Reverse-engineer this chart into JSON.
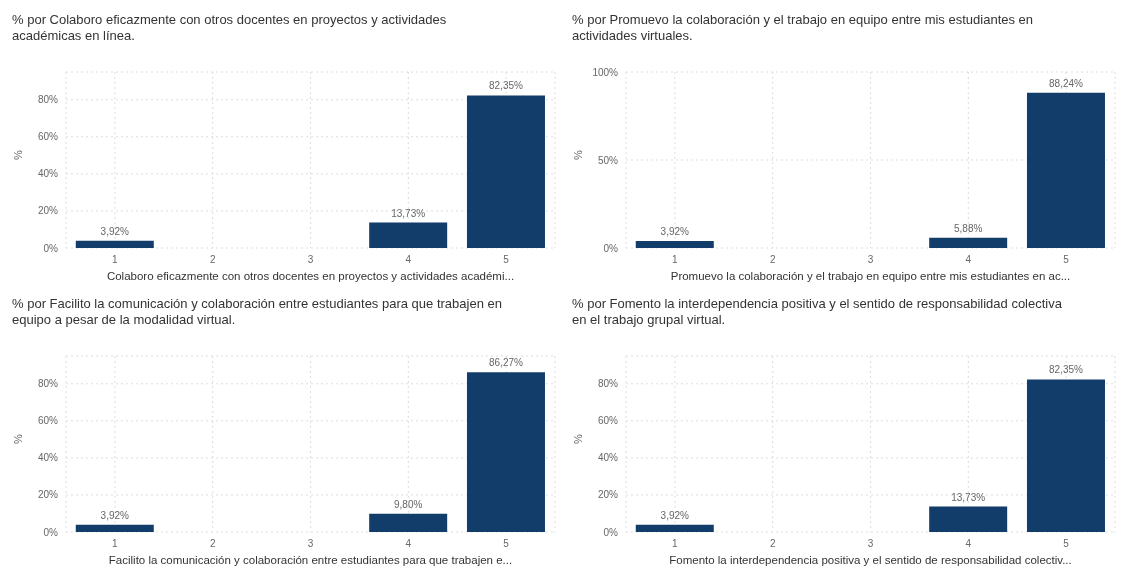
{
  "chart_data": [
    {
      "type": "bar",
      "title": "% por Colaboro eficazmente con otros docentes en proyectos y actividades académicas en línea.",
      "xlabel": "Colaboro eficazmente con otros docentes en proyectos y actividades académi...",
      "ylabel": "%",
      "categories": [
        "1",
        "2",
        "3",
        "4",
        "5"
      ],
      "values": [
        3.92,
        null,
        null,
        13.73,
        82.35
      ],
      "value_labels": [
        "3,92%",
        null,
        null,
        "13,73%",
        "82,35%"
      ],
      "color": "#123c69",
      "ylim": [
        0,
        95
      ],
      "yticks": [
        {
          "value": 0,
          "label": "0%"
        },
        {
          "value": 20,
          "label": "20%"
        },
        {
          "value": 40,
          "label": "40%"
        },
        {
          "value": 60,
          "label": "60%"
        },
        {
          "value": 80,
          "label": "80%"
        }
      ],
      "grid": true
    },
    {
      "type": "bar",
      "title": "% por Promuevo la colaboración y el trabajo en equipo entre mis estudiantes en actividades virtuales.",
      "xlabel": "Promuevo la colaboración y el trabajo en equipo entre mis estudiantes en ac...",
      "ylabel": "%",
      "categories": [
        "1",
        "2",
        "3",
        "4",
        "5"
      ],
      "values": [
        3.92,
        null,
        null,
        5.88,
        88.24
      ],
      "value_labels": [
        "3,92%",
        null,
        null,
        "5,88%",
        "88,24%"
      ],
      "color": "#123c69",
      "ylim": [
        0,
        100
      ],
      "yticks": [
        {
          "value": 0,
          "label": "0%"
        },
        {
          "value": 50,
          "label": "50%"
        },
        {
          "value": 100,
          "label": "100%"
        }
      ],
      "grid": true
    },
    {
      "type": "bar",
      "title": "% por Facilito la comunicación y colaboración entre estudiantes para que trabajen en equipo a pesar de la modalidad virtual.",
      "xlabel": "Facilito la comunicación y colaboración entre estudiantes para que trabajen e...",
      "ylabel": "%",
      "categories": [
        "1",
        "2",
        "3",
        "4",
        "5"
      ],
      "values": [
        3.92,
        null,
        null,
        9.8,
        86.27
      ],
      "value_labels": [
        "3,92%",
        null,
        null,
        "9,80%",
        "86,27%"
      ],
      "color": "#123c69",
      "ylim": [
        0,
        95
      ],
      "yticks": [
        {
          "value": 0,
          "label": "0%"
        },
        {
          "value": 20,
          "label": "20%"
        },
        {
          "value": 40,
          "label": "40%"
        },
        {
          "value": 60,
          "label": "60%"
        },
        {
          "value": 80,
          "label": "80%"
        }
      ],
      "grid": true
    },
    {
      "type": "bar",
      "title": "% por Fomento la interdependencia positiva y el sentido de responsabilidad colectiva en el trabajo grupal virtual.",
      "xlabel": "Fomento la interdependencia positiva y el sentido de responsabilidad colectiv...",
      "ylabel": "%",
      "categories": [
        "1",
        "2",
        "3",
        "4",
        "5"
      ],
      "values": [
        3.92,
        null,
        null,
        13.73,
        82.35
      ],
      "value_labels": [
        "3,92%",
        null,
        null,
        "13,73%",
        "82,35%"
      ],
      "color": "#123c69",
      "ylim": [
        0,
        95
      ],
      "yticks": [
        {
          "value": 0,
          "label": "0%"
        },
        {
          "value": 20,
          "label": "20%"
        },
        {
          "value": 40,
          "label": "40%"
        },
        {
          "value": 60,
          "label": "60%"
        },
        {
          "value": 80,
          "label": "80%"
        }
      ],
      "grid": true
    }
  ]
}
